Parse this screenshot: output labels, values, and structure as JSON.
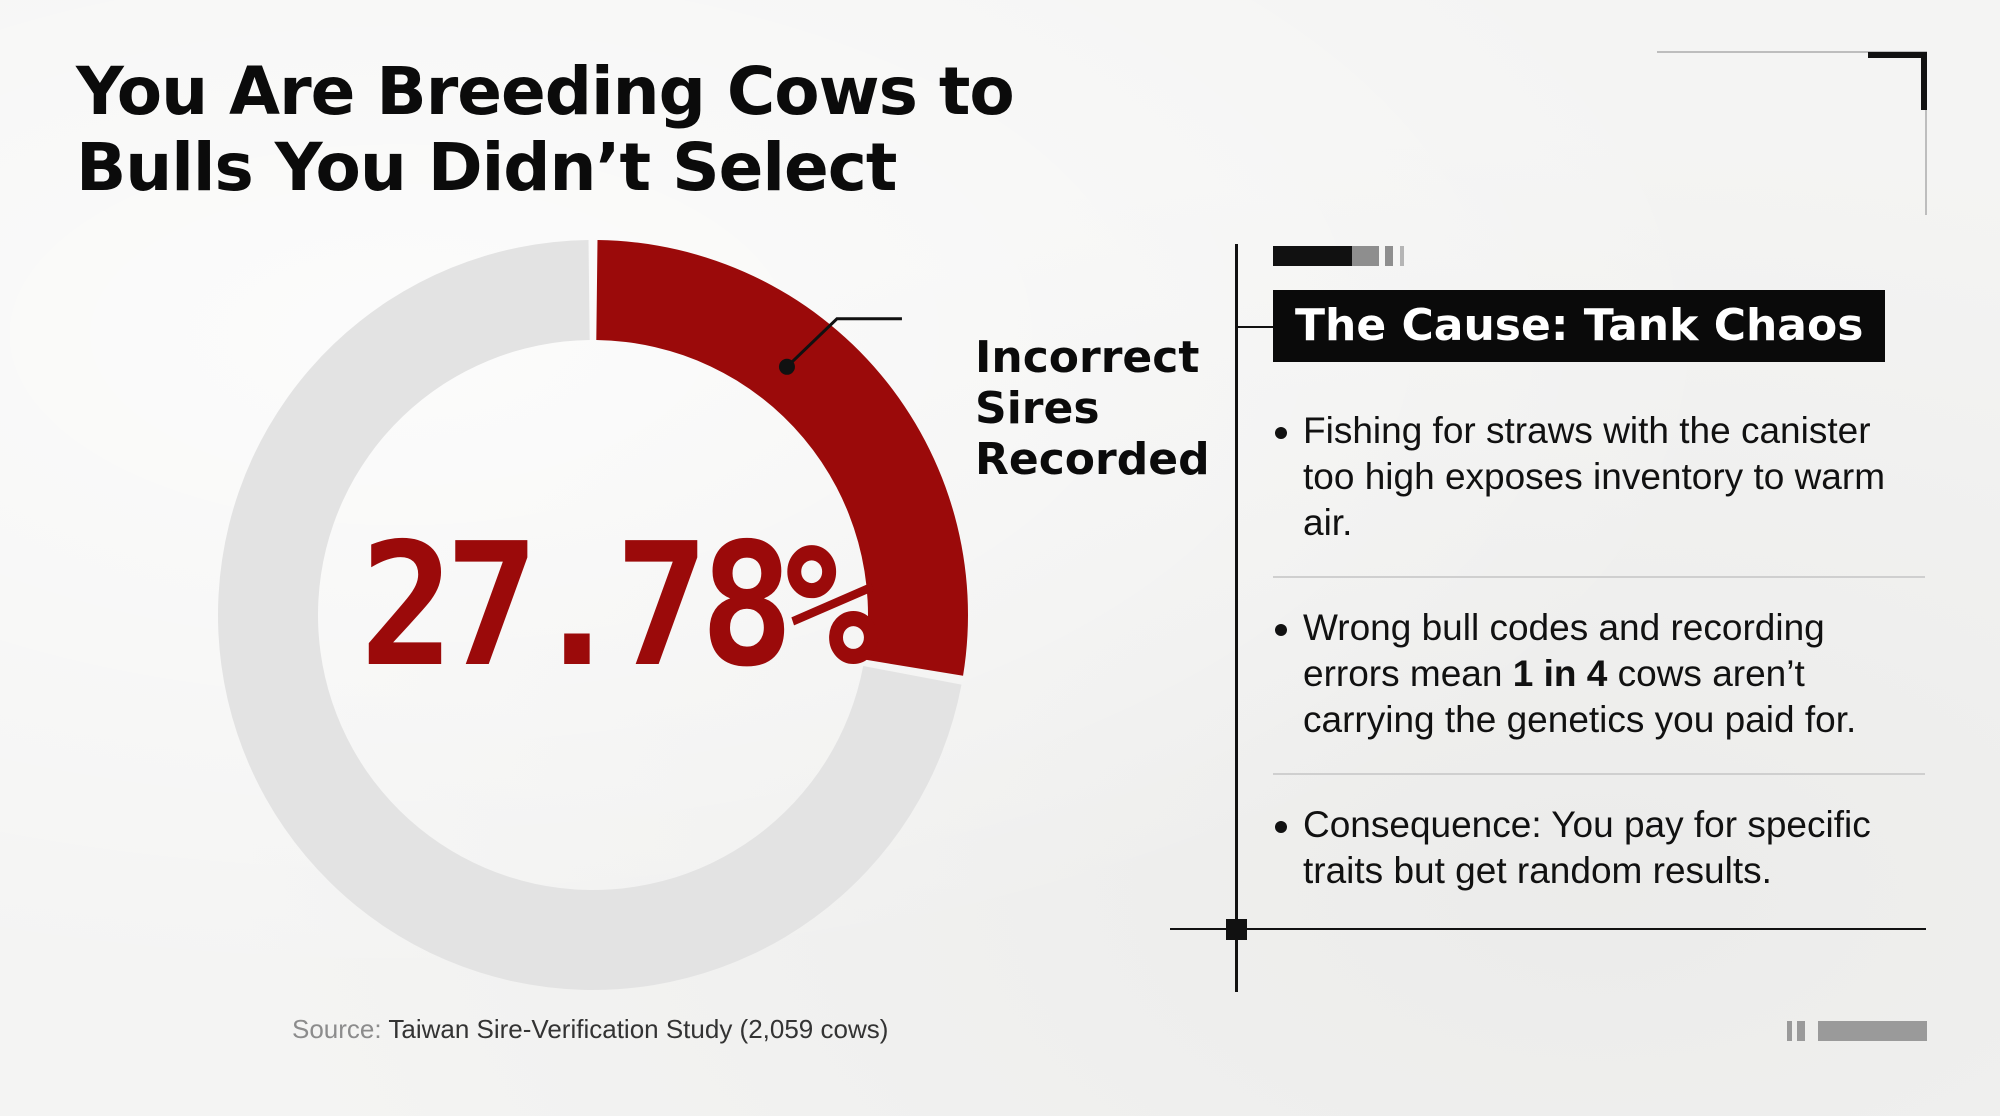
{
  "title": {
    "line1": "You Are Breeding Cows to",
    "line2": "Bulls You Didn’t Select"
  },
  "chart_data": {
    "type": "pie",
    "variant": "donut",
    "slices": [
      {
        "label": "Incorrect Sires Recorded",
        "value": 27.78
      },
      {
        "label": "",
        "value": 72.22
      }
    ],
    "center_label": "27.78%",
    "callout": [
      "Incorrect",
      "Sires",
      "Recorded"
    ],
    "colors": {
      "highlight": "#9b0a0a",
      "remainder": "#e3e3e3"
    }
  },
  "source": {
    "label": "Source:",
    "text": "Taiwan Sire-Verification Study (2,059 cows)"
  },
  "cause": {
    "heading": "The Cause: Tank Chaos",
    "bullets": [
      {
        "text": "Fishing for straws with the canister too high exposes inventory to warm air."
      },
      {
        "pre": "Wrong bull codes and recording errors mean",
        "bold": "1 in 4",
        "post": "cows aren’t carrying the genetics you paid for."
      },
      {
        "text": "Consequence: You pay for specific traits but get random results."
      }
    ]
  }
}
